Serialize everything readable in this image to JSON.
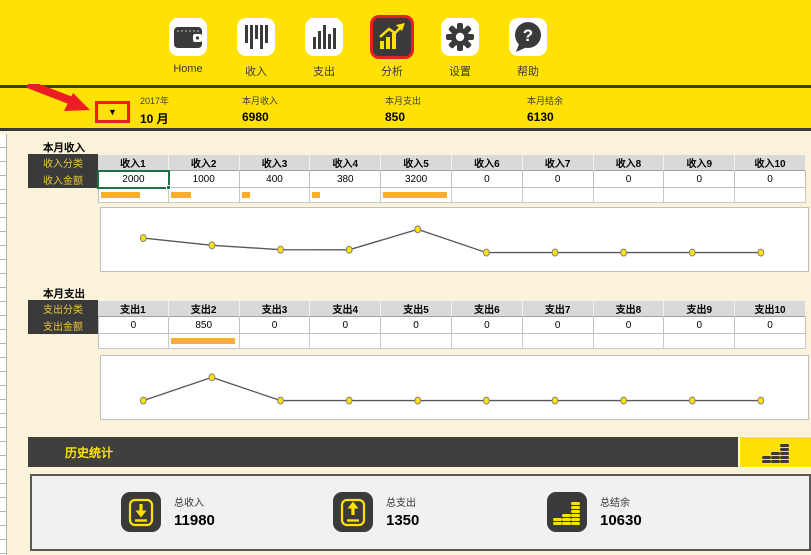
{
  "nav": {
    "items": [
      {
        "label": "Home",
        "icon": "wallet-icon",
        "active": false
      },
      {
        "label": "收入",
        "icon": "income-barcode-icon",
        "active": false
      },
      {
        "label": "支出",
        "icon": "expense-barchart-icon",
        "active": false
      },
      {
        "label": "分析",
        "icon": "analysis-chart-icon",
        "active": true
      },
      {
        "label": "设置",
        "icon": "gear-icon",
        "active": false
      },
      {
        "label": "帮助",
        "icon": "help-icon",
        "active": false
      }
    ]
  },
  "summary_bar": {
    "year": "2017年",
    "month": "10 月",
    "dropdown_glyph": "▼",
    "stats": [
      {
        "label": "本月收入",
        "value": "6980"
      },
      {
        "label": "本月支出",
        "value": "850"
      },
      {
        "label": "本月结余",
        "value": "6130"
      }
    ]
  },
  "income_section": {
    "title": "本月收入",
    "row_labels": [
      "收入分类",
      "收入金额"
    ],
    "categories": [
      "收入1",
      "收入2",
      "收入3",
      "收入4",
      "收入5",
      "收入6",
      "收入7",
      "收入8",
      "收入9",
      "收入10"
    ],
    "values": [
      2000,
      1000,
      400,
      380,
      3200,
      0,
      0,
      0,
      0,
      0
    ],
    "selected_index": 0
  },
  "expense_section": {
    "title": "本月支出",
    "row_labels": [
      "支出分类",
      "支出金额"
    ],
    "categories": [
      "支出1",
      "支出2",
      "支出3",
      "支出4",
      "支出5",
      "支出6",
      "支出7",
      "支出8",
      "支出9",
      "支出10"
    ],
    "values": [
      0,
      850,
      0,
      0,
      0,
      0,
      0,
      0,
      0,
      0
    ],
    "selected_index": -1
  },
  "history": {
    "title": "历史统计",
    "icon": "coins-icon"
  },
  "totals": {
    "items": [
      {
        "label": "总收入",
        "value": "11980",
        "icon": "download-tray-icon"
      },
      {
        "label": "总支出",
        "value": "1350",
        "icon": "upload-tray-icon"
      },
      {
        "label": "总结余",
        "value": "10630",
        "icon": "coins-icon"
      }
    ]
  },
  "colors": {
    "primary_yellow": "#FFE105",
    "dark": "#3A3A3A",
    "cream_background": "#FBF3D9",
    "databar_orange": "#FBAD33",
    "selection_green": "#1E7145",
    "highlight_red": "#EC1C24",
    "marker_fill": "#FFE105",
    "line_stroke": "#595959"
  },
  "chart_data": [
    {
      "type": "line",
      "title": "本月收入",
      "categories": [
        "收入1",
        "收入2",
        "收入3",
        "收入4",
        "收入5",
        "收入6",
        "收入7",
        "收入8",
        "收入9",
        "收入10"
      ],
      "values": [
        2000,
        1000,
        400,
        380,
        3200,
        0,
        0,
        0,
        0,
        0
      ],
      "legend": "none",
      "grid": false
    },
    {
      "type": "line",
      "title": "本月支出",
      "categories": [
        "支出1",
        "支出2",
        "支出3",
        "支出4",
        "支出5",
        "支出6",
        "支出7",
        "支出8",
        "支出9",
        "支出10"
      ],
      "values": [
        0,
        850,
        0,
        0,
        0,
        0,
        0,
        0,
        0,
        0
      ],
      "legend": "none",
      "grid": false
    }
  ]
}
